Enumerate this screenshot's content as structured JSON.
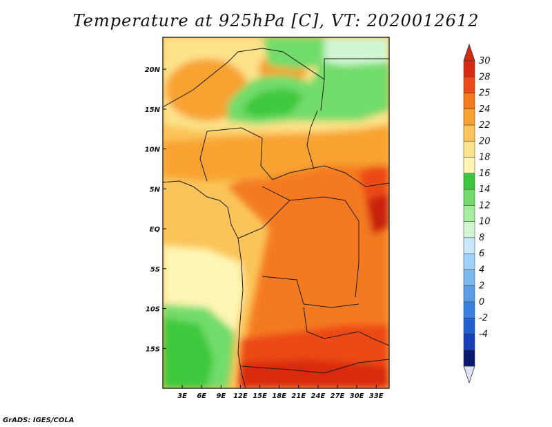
{
  "title": "Temperature at 925hPa [C], VT: 2020012612",
  "credit": "GrADS: IGES/COLA",
  "map": {
    "lon_range": [
      0,
      35
    ],
    "lat_range": [
      -20,
      24
    ],
    "x_ticks": [
      {
        "lon": 3,
        "label": "3E"
      },
      {
        "lon": 6,
        "label": "6E"
      },
      {
        "lon": 9,
        "label": "9E"
      },
      {
        "lon": 12,
        "label": "12E"
      },
      {
        "lon": 15,
        "label": "15E"
      },
      {
        "lon": 18,
        "label": "18E"
      },
      {
        "lon": 21,
        "label": "21E"
      },
      {
        "lon": 24,
        "label": "24E"
      },
      {
        "lon": 27,
        "label": "27E"
      },
      {
        "lon": 30,
        "label": "30E"
      },
      {
        "lon": 33,
        "label": "33E"
      }
    ],
    "y_ticks": [
      {
        "lat": 20,
        "label": "20N"
      },
      {
        "lat": 15,
        "label": "15N"
      },
      {
        "lat": 10,
        "label": "10N"
      },
      {
        "lat": 5,
        "label": "5N"
      },
      {
        "lat": 0,
        "label": "EQ"
      },
      {
        "lat": -5,
        "label": "5S"
      },
      {
        "lat": -10,
        "label": "10S"
      },
      {
        "lat": -15,
        "label": "15S"
      }
    ]
  },
  "colorbar": {
    "levels": [
      "-4",
      "-2",
      "0",
      "2",
      "4",
      "6",
      "8",
      "10",
      "12",
      "14",
      "16",
      "18",
      "20",
      "22",
      "24",
      "25",
      "28",
      "30"
    ],
    "colors": [
      "#0c1a6e",
      "#1840b8",
      "#2060d0",
      "#3a80e0",
      "#5a9ee8",
      "#7ab8f0",
      "#a0d0f6",
      "#c8e8fa",
      "#d2f5d2",
      "#a6eca0",
      "#72dc6a",
      "#3cc83c",
      "#fff5b4",
      "#fde28a",
      "#fbc45a",
      "#f8a232",
      "#f47a20",
      "#ec4a16",
      "#d82a10"
    ],
    "under_color": "#dde2f6",
    "over_color": "#d42a12"
  }
}
